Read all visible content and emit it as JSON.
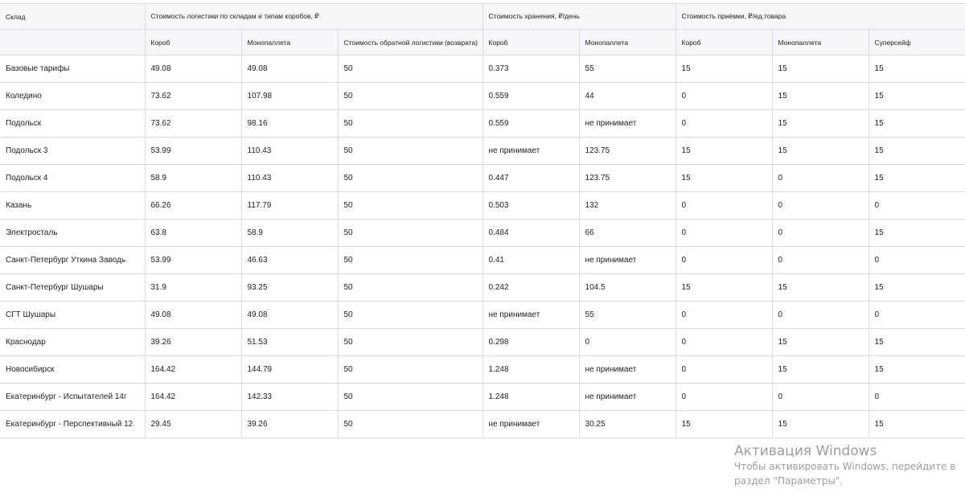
{
  "table": {
    "header_groups": {
      "warehouse": "Склад",
      "logistics": "Стоимость логистики по складам и типам коробов, ₽",
      "storage": "Стоимость хранения, ₽/день",
      "acceptance": "Стоимость приёмки, ₽/ед.товара"
    },
    "subheaders": [
      "Короб",
      "Монопаллета",
      "Стоимость обратной логистики (возврата)",
      "Короб",
      "Монопаллета",
      "Короб",
      "Монопаллета",
      "Суперсейф"
    ],
    "rows": [
      [
        "Базовые тарифы",
        "49.08",
        "49.08",
        "50",
        "0.373",
        "55",
        "15",
        "15",
        "15"
      ],
      [
        "Коледино",
        "73.62",
        "107.98",
        "50",
        "0.559",
        "44",
        "0",
        "15",
        "15"
      ],
      [
        "Подольск",
        "73.62",
        "98.16",
        "50",
        "0.559",
        "не принимает",
        "0",
        "15",
        "15"
      ],
      [
        "Подольск 3",
        "53.99",
        "110.43",
        "50",
        "не принимает",
        "123.75",
        "15",
        "15",
        "15"
      ],
      [
        "Подольск 4",
        "58.9",
        "110.43",
        "50",
        "0.447",
        "123.75",
        "15",
        "0",
        "15"
      ],
      [
        "Казань",
        "66.26",
        "117.79",
        "50",
        "0.503",
        "132",
        "0",
        "0",
        "0"
      ],
      [
        "Электросталь",
        "63.8",
        "58.9",
        "50",
        "0.484",
        "66",
        "0",
        "0",
        "15"
      ],
      [
        "Санкт-Петербург Уткина Заводь",
        "53.99",
        "46.63",
        "50",
        "0.41",
        "не принимает",
        "0",
        "0",
        "0"
      ],
      [
        "Санкт-Петербург Шушары",
        "31.9",
        "93.25",
        "50",
        "0.242",
        "104.5",
        "15",
        "15",
        "15"
      ],
      [
        "СГТ Шушары",
        "49.08",
        "49.08",
        "50",
        "не принимает",
        "55",
        "0",
        "0",
        "0"
      ],
      [
        "Краснодар",
        "39.26",
        "51.53",
        "50",
        "0.298",
        "0",
        "0",
        "15",
        "15"
      ],
      [
        "Новосибирск",
        "164.42",
        "144.79",
        "50",
        "1.248",
        "не принимает",
        "0",
        "15",
        "15"
      ],
      [
        "Екатеринбург - Испытателей 14г",
        "164.42",
        "142.33",
        "50",
        "1.248",
        "не принимает",
        "0",
        "0",
        "0"
      ],
      [
        "Екатеринбург - Перспективный 12",
        "29.45",
        "39.26",
        "50",
        "не принимает",
        "30.25",
        "15",
        "15",
        "15"
      ]
    ]
  },
  "watermark": {
    "title": "Активация Windows",
    "line1": "Чтобы активировать Windows, перейдите в",
    "line2": "раздел \"Параметры\"."
  }
}
